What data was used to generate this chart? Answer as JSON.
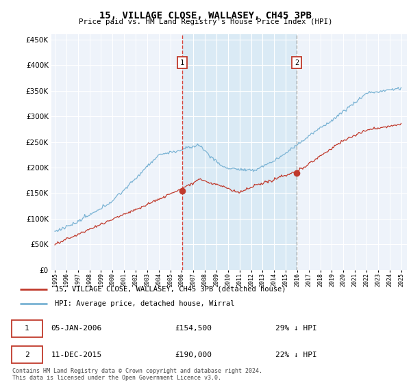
{
  "title": "15, VILLAGE CLOSE, WALLASEY, CH45 3PB",
  "subtitle": "Price paid vs. HM Land Registry's House Price Index (HPI)",
  "legend_line1": "15, VILLAGE CLOSE, WALLASEY, CH45 3PB (detached house)",
  "legend_line2": "HPI: Average price, detached house, Wirral",
  "annotation1_date": "05-JAN-2006",
  "annotation1_price": 154500,
  "annotation1_hpi": "29% ↓ HPI",
  "annotation2_date": "11-DEC-2015",
  "annotation2_price": 190000,
  "annotation2_hpi": "22% ↓ HPI",
  "footer": "Contains HM Land Registry data © Crown copyright and database right 2024.\nThis data is licensed under the Open Government Licence v3.0.",
  "hpi_color": "#7ab3d4",
  "price_color": "#c0392b",
  "vline1_color": "#d73027",
  "vline2_color": "#888888",
  "shade_color": "#daeaf5",
  "background_plot": "#eef3fa",
  "grid_color": "#ffffff",
  "ylim": [
    0,
    460000
  ],
  "yticks": [
    0,
    50000,
    100000,
    150000,
    200000,
    250000,
    300000,
    350000,
    400000,
    450000
  ],
  "t1_x": 2006.02,
  "t1_y": 154500,
  "t2_x": 2015.95,
  "t2_y": 190000,
  "xmin": 1994.7,
  "xmax": 2025.5
}
